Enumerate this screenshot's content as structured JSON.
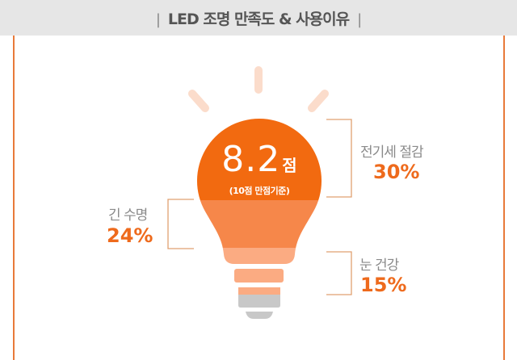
{
  "header": {
    "title": "LED 조명 만족도 & 사용이유",
    "divider": "|"
  },
  "satisfaction": {
    "score": "8.2",
    "unit": "점",
    "note": "(10점 만점기준)"
  },
  "reasons": [
    {
      "label": "전기세 절감",
      "percent": "30%"
    },
    {
      "label": "긴 수명",
      "percent": "24%"
    },
    {
      "label": "눈 건강",
      "percent": "15%"
    }
  ],
  "colors": {
    "accent": "#ee6a1c",
    "bulb_top": "#f26a10",
    "bulb_mid": "#f6874a",
    "bulb_low": "#fbab82",
    "base_gray": "#c8c8c8",
    "ray": "#fbdccb",
    "bracket": "#e0a070"
  }
}
